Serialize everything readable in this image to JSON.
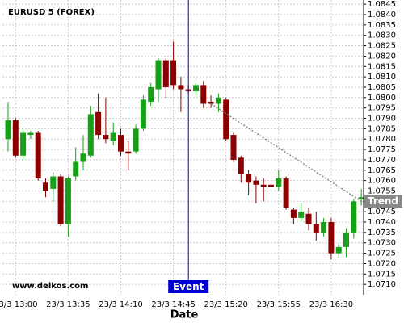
{
  "chart_data": {
    "type": "candlestick",
    "title": "EURUSD 5 (FOREX)",
    "watermark": "www.delkos.com",
    "x_label": "Date",
    "categories": [
      null,
      "23/3 13:00",
      null,
      null,
      null,
      null,
      null,
      null,
      "23/3 13:35",
      null,
      null,
      null,
      null,
      null,
      null,
      "23/3 14:10",
      null,
      null,
      null,
      null,
      null,
      null,
      "23/3 14:45",
      null,
      null,
      null,
      null,
      null,
      null,
      "23/3 15:20",
      null,
      null,
      null,
      null,
      null,
      null,
      "23/3 15:55",
      null,
      null,
      null,
      null,
      null,
      null,
      "23/3 16:30",
      null,
      null,
      null,
      null
    ],
    "open": [
      1.078,
      1.0789,
      1.0772,
      1.0782,
      1.0783,
      1.0759,
      1.0756,
      1.0762,
      1.0739,
      1.0762,
      1.0769,
      1.0772,
      1.0793,
      1.0782,
      1.0779,
      1.0782,
      1.0774,
      1.0774,
      1.0785,
      1.0798,
      1.0804,
      1.0818,
      1.0818,
      1.0806,
      1.0804,
      1.0803,
      1.0806,
      1.0798,
      1.0797,
      1.0799,
      1.0782,
      1.0771,
      1.0763,
      1.076,
      1.0758,
      1.0758,
      1.0757,
      1.0761,
      1.0746,
      1.0742,
      1.0744,
      1.0739,
      1.0735,
      1.074,
      1.0725,
      1.0728,
      1.0735,
      1.0751
    ],
    "high": [
      1.0798,
      1.079,
      1.0785,
      1.0784,
      1.0784,
      1.0761,
      1.0764,
      1.0763,
      1.0762,
      1.0776,
      1.0782,
      1.0796,
      1.0802,
      1.08,
      1.0788,
      1.0785,
      1.0779,
      1.0787,
      1.0801,
      1.0807,
      1.0819,
      1.0819,
      1.0827,
      1.081,
      1.0806,
      1.0807,
      1.0808,
      1.0801,
      1.0802,
      1.08,
      1.0783,
      1.0772,
      1.0765,
      1.0762,
      1.0761,
      1.076,
      1.0765,
      1.0762,
      1.0747,
      1.0749,
      1.0747,
      1.0745,
      1.0742,
      1.0742,
      1.073,
      1.0737,
      1.0751,
      1.0756
    ],
    "low": [
      1.0774,
      1.0771,
      1.077,
      1.078,
      1.076,
      1.0752,
      1.075,
      1.0738,
      1.0733,
      1.076,
      1.0765,
      1.0771,
      1.078,
      1.0778,
      1.0777,
      1.0772,
      1.0765,
      1.0773,
      1.0784,
      1.0796,
      1.0798,
      1.08,
      1.0804,
      1.0793,
      1.0802,
      1.0801,
      1.0795,
      1.0795,
      1.0793,
      1.0779,
      1.0769,
      1.0759,
      1.0753,
      1.0749,
      1.075,
      1.0754,
      1.0755,
      1.0746,
      1.0739,
      1.074,
      1.0736,
      1.0731,
      1.0733,
      1.0722,
      1.0723,
      1.0723,
      1.0732,
      1.0748
    ],
    "close": [
      1.0789,
      1.0772,
      1.0783,
      1.0783,
      1.0761,
      1.0755,
      1.0762,
      1.0739,
      1.0761,
      1.0769,
      1.0773,
      1.0792,
      1.0782,
      1.078,
      1.0783,
      1.0774,
      1.0773,
      1.0785,
      1.0799,
      1.0805,
      1.0818,
      1.0805,
      1.0806,
      1.0804,
      1.0803,
      1.0806,
      1.0797,
      1.0797,
      1.08,
      1.078,
      1.077,
      1.0763,
      1.0759,
      1.0758,
      1.0757,
      1.0757,
      1.0761,
      1.0747,
      1.0742,
      1.0745,
      1.0739,
      1.0735,
      1.074,
      1.0725,
      1.0728,
      1.0735,
      1.075,
      1.0752
    ],
    "up_color": "#17a017",
    "down_color": "#8b0000",
    "ylim": [
      1.0705,
      1.0847
    ],
    "yticks": [
      {
        "value": 1.071,
        "label": "1.0710"
      },
      1.0715,
      {
        "value": 1.072,
        "label": "1.0720"
      },
      1.0725,
      {
        "value": 1.073,
        "label": "1.0730"
      },
      1.0735,
      {
        "value": 1.074,
        "label": "1.0740"
      },
      1.0745,
      {
        "value": 1.075,
        "label": "1.0750"
      },
      1.0755,
      {
        "value": 1.076,
        "label": "1.0760"
      },
      1.0765,
      {
        "value": 1.077,
        "label": "1.0770"
      },
      1.0775,
      {
        "value": 1.078,
        "label": "1.0780"
      },
      1.0785,
      {
        "value": 1.079,
        "label": "1.0790"
      },
      1.0795,
      {
        "value": 1.08,
        "label": "1.0800"
      },
      1.0805,
      {
        "value": 1.081,
        "label": "1.0810"
      },
      1.0815,
      {
        "value": 1.082,
        "label": "1.0820"
      },
      1.0825,
      {
        "value": 1.083,
        "label": "1.0830"
      },
      1.0835,
      {
        "value": 1.084,
        "label": "1.0840"
      },
      1.0845
    ],
    "grid": true,
    "event": {
      "label": "Event",
      "index": 24,
      "color": "#0000cc"
    },
    "trend": {
      "label": "Trend",
      "x": [
        27,
        47
      ],
      "y": [
        1.0797,
        1.075
      ],
      "color": "#888888"
    }
  }
}
